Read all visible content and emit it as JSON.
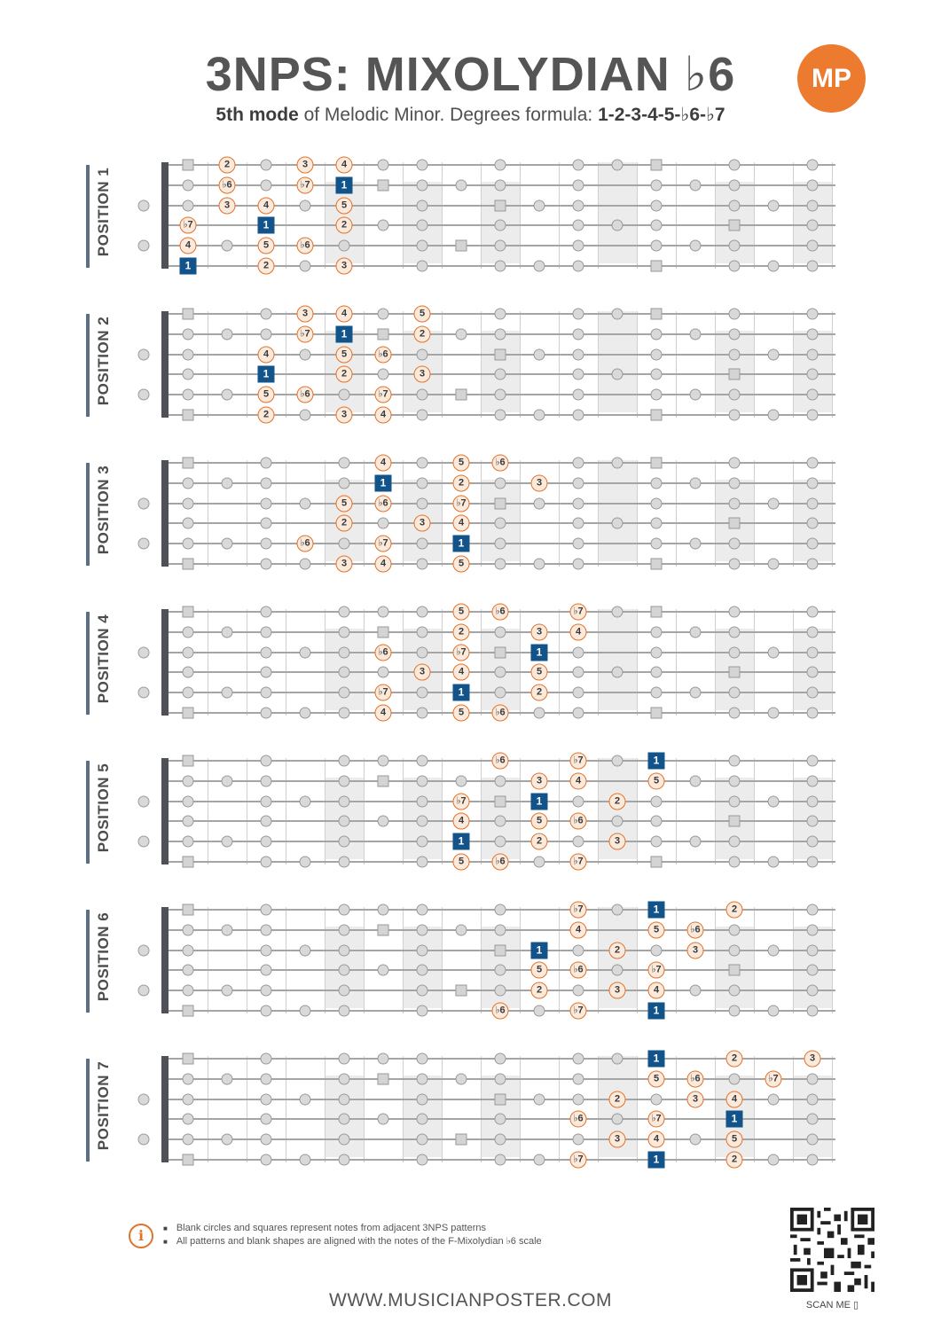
{
  "header": {
    "title": "3NPS: MIXOLYDIAN ♭6",
    "subtitle_bold": "5th mode",
    "subtitle_text": " of Melodic Minor. Degrees formula: ",
    "formula": "1-2-3-4-5-♭6-♭7",
    "logo_text": "MP"
  },
  "positions": [
    {
      "label": "POSITION 1",
      "notes": [
        [
          0,
          2,
          "2"
        ],
        [
          0,
          4,
          "3"
        ],
        [
          0,
          5,
          "4"
        ],
        [
          1,
          2,
          "♭6"
        ],
        [
          1,
          4,
          "♭7"
        ],
        [
          1,
          5,
          "1"
        ],
        [
          2,
          2,
          "3"
        ],
        [
          2,
          3,
          "4"
        ],
        [
          2,
          5,
          "5"
        ],
        [
          3,
          1,
          "♭7"
        ],
        [
          3,
          3,
          "1"
        ],
        [
          3,
          5,
          "2"
        ],
        [
          4,
          1,
          "4"
        ],
        [
          4,
          3,
          "5"
        ],
        [
          4,
          4,
          "♭6"
        ],
        [
          5,
          1,
          "1"
        ],
        [
          5,
          3,
          "2"
        ],
        [
          5,
          5,
          "3"
        ]
      ]
    },
    {
      "label": "POSITION 2",
      "notes": [
        [
          0,
          4,
          "3"
        ],
        [
          0,
          5,
          "4"
        ],
        [
          0,
          7,
          "5"
        ],
        [
          1,
          4,
          "♭7"
        ],
        [
          1,
          5,
          "1"
        ],
        [
          1,
          7,
          "2"
        ],
        [
          2,
          3,
          "4"
        ],
        [
          2,
          5,
          "5"
        ],
        [
          2,
          6,
          "♭6"
        ],
        [
          3,
          3,
          "1"
        ],
        [
          3,
          5,
          "2"
        ],
        [
          3,
          7,
          "3"
        ],
        [
          4,
          3,
          "5"
        ],
        [
          4,
          4,
          "♭6"
        ],
        [
          4,
          6,
          "♭7"
        ],
        [
          5,
          3,
          "2"
        ],
        [
          5,
          5,
          "3"
        ],
        [
          5,
          6,
          "4"
        ]
      ]
    },
    {
      "label": "POSITION 3",
      "notes": [
        [
          0,
          6,
          "4"
        ],
        [
          0,
          8,
          "5"
        ],
        [
          0,
          9,
          "♭6"
        ],
        [
          1,
          6,
          "1"
        ],
        [
          1,
          8,
          "2"
        ],
        [
          1,
          10,
          "3"
        ],
        [
          2,
          5,
          "5"
        ],
        [
          2,
          6,
          "♭6"
        ],
        [
          2,
          8,
          "♭7"
        ],
        [
          3,
          5,
          "2"
        ],
        [
          3,
          7,
          "3"
        ],
        [
          3,
          8,
          "4"
        ],
        [
          4,
          4,
          "♭6"
        ],
        [
          4,
          6,
          "♭7"
        ],
        [
          4,
          8,
          "1"
        ],
        [
          5,
          5,
          "3"
        ],
        [
          5,
          6,
          "4"
        ],
        [
          5,
          8,
          "5"
        ]
      ]
    },
    {
      "label": "POSITION 4",
      "notes": [
        [
          0,
          8,
          "5"
        ],
        [
          0,
          9,
          "♭6"
        ],
        [
          0,
          11,
          "♭7"
        ],
        [
          1,
          8,
          "2"
        ],
        [
          1,
          10,
          "3"
        ],
        [
          1,
          11,
          "4"
        ],
        [
          2,
          6,
          "♭6"
        ],
        [
          2,
          8,
          "♭7"
        ],
        [
          2,
          10,
          "1"
        ],
        [
          3,
          7,
          "3"
        ],
        [
          3,
          8,
          "4"
        ],
        [
          3,
          10,
          "5"
        ],
        [
          4,
          6,
          "♭7"
        ],
        [
          4,
          8,
          "1"
        ],
        [
          4,
          10,
          "2"
        ],
        [
          5,
          6,
          "4"
        ],
        [
          5,
          8,
          "5"
        ],
        [
          5,
          9,
          "♭6"
        ]
      ]
    },
    {
      "label": "POSITION 5",
      "notes": [
        [
          0,
          9,
          "♭6"
        ],
        [
          0,
          11,
          "♭7"
        ],
        [
          0,
          13,
          "1"
        ],
        [
          1,
          10,
          "3"
        ],
        [
          1,
          11,
          "4"
        ],
        [
          1,
          13,
          "5"
        ],
        [
          2,
          8,
          "♭7"
        ],
        [
          2,
          10,
          "1"
        ],
        [
          2,
          12,
          "2"
        ],
        [
          3,
          8,
          "4"
        ],
        [
          3,
          10,
          "5"
        ],
        [
          3,
          11,
          "♭6"
        ],
        [
          4,
          8,
          "1"
        ],
        [
          4,
          10,
          "2"
        ],
        [
          4,
          12,
          "3"
        ],
        [
          5,
          8,
          "5"
        ],
        [
          5,
          9,
          "♭6"
        ],
        [
          5,
          11,
          "♭7"
        ]
      ]
    },
    {
      "label": "POSITION 6",
      "notes": [
        [
          0,
          11,
          "♭7"
        ],
        [
          0,
          13,
          "1"
        ],
        [
          0,
          15,
          "2"
        ],
        [
          1,
          11,
          "4"
        ],
        [
          1,
          13,
          "5"
        ],
        [
          1,
          14,
          "♭6"
        ],
        [
          2,
          10,
          "1"
        ],
        [
          2,
          12,
          "2"
        ],
        [
          2,
          14,
          "3"
        ],
        [
          3,
          10,
          "5"
        ],
        [
          3,
          11,
          "♭6"
        ],
        [
          3,
          13,
          "♭7"
        ],
        [
          4,
          10,
          "2"
        ],
        [
          4,
          12,
          "3"
        ],
        [
          4,
          13,
          "4"
        ],
        [
          5,
          9,
          "♭6"
        ],
        [
          5,
          11,
          "♭7"
        ],
        [
          5,
          13,
          "1"
        ]
      ]
    },
    {
      "label": "POSITION 7",
      "notes": [
        [
          0,
          13,
          "1"
        ],
        [
          0,
          15,
          "2"
        ],
        [
          0,
          17,
          "3"
        ],
        [
          1,
          13,
          "5"
        ],
        [
          1,
          14,
          "♭6"
        ],
        [
          1,
          16,
          "♭7"
        ],
        [
          2,
          12,
          "2"
        ],
        [
          2,
          14,
          "3"
        ],
        [
          2,
          15,
          "4"
        ],
        [
          3,
          11,
          "♭6"
        ],
        [
          3,
          13,
          "♭7"
        ],
        [
          3,
          15,
          "1"
        ],
        [
          4,
          12,
          "3"
        ],
        [
          4,
          13,
          "4"
        ],
        [
          4,
          15,
          "5"
        ],
        [
          5,
          11,
          "♭7"
        ],
        [
          5,
          13,
          "1"
        ],
        [
          5,
          15,
          "2"
        ]
      ]
    }
  ],
  "ghost_squares": [
    [
      0,
      1
    ],
    [
      0,
      13
    ],
    [
      1,
      6
    ],
    [
      2,
      9
    ],
    [
      3,
      15
    ],
    [
      4,
      8
    ],
    [
      5,
      1
    ],
    [
      5,
      13
    ]
  ],
  "footer": {
    "notes": [
      "Blank circles and squares represent notes from adjacent 3NPS patterns",
      "All patterns and blank shapes are aligned with the notes of the F-Mixolydian ♭6 scale"
    ],
    "info_icon": "i",
    "website": "WWW.MUSICIANPOSTER.COM",
    "scan_label": "SCAN ME ▯"
  },
  "colors": {
    "accent": "#e0732c",
    "root": "#125389",
    "nut": "#4e5256",
    "label_bar": "#5b6f86"
  }
}
